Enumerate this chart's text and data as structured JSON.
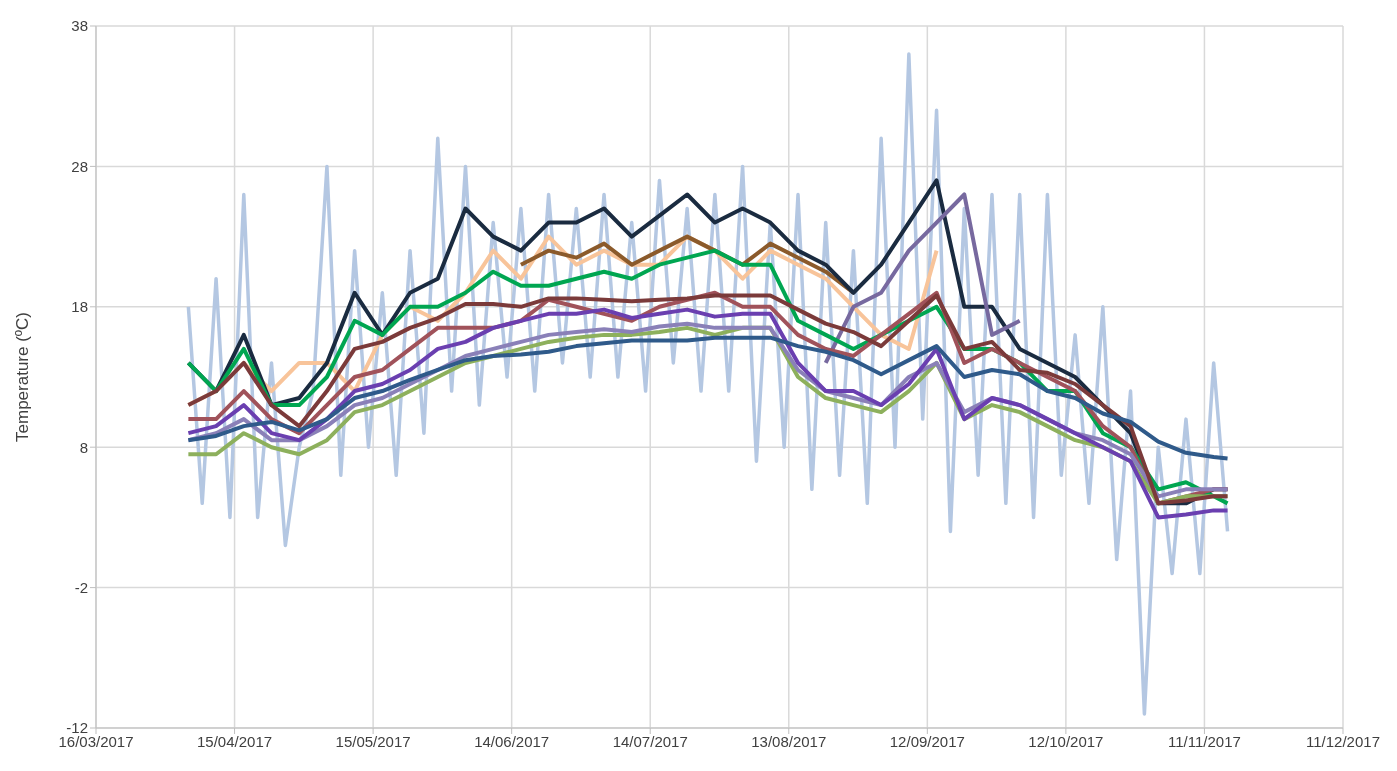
{
  "chart_data": {
    "type": "line",
    "ylabel": "Temperature (ºC)",
    "xlim": [
      "2017-03-16",
      "2017-12-11"
    ],
    "xticks": [
      {
        "value": "2017-03-16",
        "label": "16/03/2017"
      },
      {
        "value": "2017-04-15",
        "label": "15/04/2017"
      },
      {
        "value": "2017-05-15",
        "label": "15/05/2017"
      },
      {
        "value": "2017-06-14",
        "label": "14/06/2017"
      },
      {
        "value": "2017-07-14",
        "label": "14/07/2017"
      },
      {
        "value": "2017-08-13",
        "label": "13/08/2017"
      },
      {
        "value": "2017-09-12",
        "label": "12/09/2017"
      },
      {
        "value": "2017-10-12",
        "label": "12/10/2017"
      },
      {
        "value": "2017-11-11",
        "label": "11/11/2017"
      },
      {
        "value": "2017-12-11",
        "label": "11/12/2017"
      }
    ],
    "ylim": [
      -12,
      38
    ],
    "yticks": [
      -12,
      -2,
      8,
      18,
      28,
      38
    ],
    "grid": true,
    "x": [
      "2017-04-05",
      "2017-04-11",
      "2017-04-17",
      "2017-04-23",
      "2017-04-29",
      "2017-05-05",
      "2017-05-11",
      "2017-05-17",
      "2017-05-23",
      "2017-05-29",
      "2017-06-04",
      "2017-06-10",
      "2017-06-16",
      "2017-06-22",
      "2017-06-28",
      "2017-07-04",
      "2017-07-10",
      "2017-07-16",
      "2017-07-22",
      "2017-07-28",
      "2017-08-03",
      "2017-08-09",
      "2017-08-15",
      "2017-08-21",
      "2017-08-27",
      "2017-09-02",
      "2017-09-08",
      "2017-09-14",
      "2017-09-20",
      "2017-09-26",
      "2017-10-02",
      "2017-10-08",
      "2017-10-14",
      "2017-10-20",
      "2017-10-26",
      "2017-11-01",
      "2017-11-07",
      "2017-11-13",
      "2017-11-16"
    ],
    "series": [
      {
        "color": "#b4c7e2",
        "x": [
          "2017-04-05",
          "2017-04-08",
          "2017-04-11",
          "2017-04-14",
          "2017-04-17",
          "2017-04-20",
          "2017-04-23",
          "2017-04-26",
          "2017-04-29",
          "2017-05-02",
          "2017-05-05",
          "2017-05-08",
          "2017-05-11",
          "2017-05-14",
          "2017-05-17",
          "2017-05-20",
          "2017-05-23",
          "2017-05-26",
          "2017-05-29",
          "2017-06-01",
          "2017-06-04",
          "2017-06-07",
          "2017-06-10",
          "2017-06-13",
          "2017-06-16",
          "2017-06-19",
          "2017-06-22",
          "2017-06-25",
          "2017-06-28",
          "2017-07-01",
          "2017-07-04",
          "2017-07-07",
          "2017-07-10",
          "2017-07-13",
          "2017-07-16",
          "2017-07-19",
          "2017-07-22",
          "2017-07-25",
          "2017-07-28",
          "2017-07-31",
          "2017-08-03",
          "2017-08-06",
          "2017-08-09",
          "2017-08-12",
          "2017-08-15",
          "2017-08-18",
          "2017-08-21",
          "2017-08-24",
          "2017-08-27",
          "2017-08-30",
          "2017-09-02",
          "2017-09-05",
          "2017-09-08",
          "2017-09-11",
          "2017-09-14",
          "2017-09-17",
          "2017-09-20",
          "2017-09-23",
          "2017-09-26",
          "2017-09-29",
          "2017-10-02",
          "2017-10-05",
          "2017-10-08",
          "2017-10-11",
          "2017-10-14",
          "2017-10-17",
          "2017-10-20",
          "2017-10-23",
          "2017-10-26",
          "2017-10-29",
          "2017-11-01",
          "2017-11-04",
          "2017-11-07",
          "2017-11-10",
          "2017-11-13",
          "2017-11-16"
        ],
        "values": [
          18,
          4,
          20,
          3,
          26,
          3,
          14,
          1,
          8,
          12,
          28,
          6,
          22,
          8,
          19,
          6,
          22,
          9,
          30,
          12,
          28,
          11,
          24,
          13,
          25,
          12,
          26,
          14,
          25,
          13,
          26,
          13,
          24,
          12,
          27,
          14,
          25,
          12,
          26,
          12,
          28,
          7,
          24,
          8,
          26,
          5,
          24,
          6,
          22,
          4,
          30,
          8,
          36,
          10,
          32,
          2,
          25,
          6,
          26,
          4,
          26,
          3,
          26,
          6,
          16,
          4,
          18,
          0,
          12,
          -11,
          8,
          -1,
          10,
          -1,
          14,
          2
        ]
      },
      {
        "color": "#f8c49a",
        "values": [
          11,
          12,
          14,
          12,
          14,
          14,
          12,
          16,
          18,
          17,
          19,
          22,
          20,
          23,
          21,
          22,
          21,
          21,
          23,
          22,
          20,
          22,
          21,
          20,
          18,
          16,
          15,
          22,
          null,
          null,
          null,
          null,
          null,
          null,
          null,
          null,
          null,
          null,
          null
        ]
      },
      {
        "color": "#8b5a2b",
        "values": [
          null,
          null,
          null,
          null,
          null,
          null,
          null,
          null,
          null,
          null,
          null,
          null,
          21,
          22,
          21.5,
          22.5,
          21,
          22,
          23,
          22,
          21,
          22.5,
          21.5,
          20.5,
          19,
          null,
          null,
          null,
          null,
          null,
          null,
          null,
          null,
          null,
          null,
          null,
          null,
          null,
          null
        ]
      },
      {
        "color": "#1a2b40",
        "values": [
          14,
          12,
          16,
          11,
          11.5,
          14,
          19,
          16,
          19,
          20,
          25,
          23,
          22,
          24,
          24,
          25,
          23,
          24.5,
          26,
          24,
          25,
          24,
          22,
          21,
          19,
          21,
          24,
          27,
          18,
          18,
          15,
          14,
          13,
          11,
          9,
          4,
          4,
          5,
          5
        ]
      },
      {
        "color": "#77699f",
        "values": [
          null,
          null,
          null,
          null,
          null,
          null,
          null,
          null,
          null,
          null,
          null,
          null,
          null,
          null,
          null,
          null,
          null,
          null,
          null,
          null,
          null,
          null,
          null,
          14,
          18,
          19,
          22,
          24,
          26,
          16,
          17,
          null,
          null,
          null,
          null,
          null,
          null,
          null,
          null
        ]
      },
      {
        "color": "#00a651",
        "values": [
          14,
          12,
          15,
          11,
          11,
          13,
          17,
          16,
          18,
          18,
          19,
          20.5,
          19.5,
          19.5,
          20,
          20.5,
          20,
          21,
          21.5,
          22,
          21,
          21,
          17,
          16,
          15,
          16,
          17,
          18,
          15,
          15,
          14,
          12,
          12,
          9,
          8,
          5,
          5.5,
          4.5,
          4
        ]
      },
      {
        "color": "#a0525a",
        "values": [
          10,
          10,
          12,
          10,
          9,
          11,
          13,
          13.5,
          15,
          16.5,
          16.5,
          16.5,
          17,
          18.5,
          18,
          17.5,
          17,
          18,
          18.5,
          19,
          18,
          18,
          16,
          15,
          14.5,
          16,
          17.5,
          19,
          14,
          15,
          14,
          13,
          12,
          9.5,
          8,
          4,
          4.5,
          5,
          5
        ]
      },
      {
        "color": "#8db05c",
        "values": [
          7.5,
          7.5,
          9,
          8,
          7.5,
          8.5,
          10.5,
          11,
          12,
          13,
          14,
          14.5,
          15,
          15.5,
          15.8,
          16,
          16,
          16.2,
          16.5,
          16,
          16.5,
          16.5,
          13,
          11.5,
          11,
          10.5,
          12,
          14,
          10,
          11,
          10.5,
          9.5,
          8.5,
          8,
          7,
          4,
          4.5,
          4.5,
          4.5
        ]
      },
      {
        "color": "#8a80b8",
        "values": [
          8.5,
          9,
          10,
          8.5,
          8.5,
          9.5,
          11,
          11.5,
          12.5,
          13.5,
          14.5,
          15,
          15.5,
          16,
          16.2,
          16.4,
          16.2,
          16.6,
          16.8,
          16.5,
          16.5,
          16.5,
          13.5,
          12,
          11.5,
          11,
          13,
          14,
          10.5,
          11.5,
          11,
          10,
          9,
          8.5,
          7.5,
          4.5,
          5,
          5,
          5
        ]
      },
      {
        "color": "#6a3fb0",
        "values": [
          9,
          9.5,
          11,
          9,
          8.5,
          10,
          12,
          12.5,
          13.5,
          15,
          15.5,
          16.5,
          17,
          17.5,
          17.5,
          17.8,
          17.2,
          17.5,
          17.8,
          17.3,
          17.5,
          17.5,
          14,
          12,
          12,
          11,
          12.5,
          15,
          10,
          11.5,
          11,
          10,
          9,
          8,
          7,
          3,
          3.2,
          3.5,
          3.5
        ]
      },
      {
        "color": "#7b3a3a",
        "values": [
          11,
          12,
          14,
          11,
          9.5,
          12,
          15,
          15.5,
          16.5,
          17.2,
          18.2,
          18.2,
          18,
          18.6,
          18.6,
          18.5,
          18.4,
          18.5,
          18.6,
          18.8,
          18.8,
          18.8,
          17.8,
          16.8,
          16.2,
          15.2,
          17,
          18.8,
          15,
          15.5,
          13.5,
          13.3,
          12.5,
          11,
          9.5,
          4,
          4.2,
          4.5,
          4.5
        ]
      },
      {
        "color": "#2f5a8a",
        "values": [
          8.5,
          8.8,
          9.5,
          9.8,
          9.2,
          10,
          11.5,
          12,
          12.8,
          13.5,
          14.2,
          14.5,
          14.6,
          14.8,
          15.2,
          15.4,
          15.6,
          15.6,
          15.6,
          15.8,
          15.8,
          15.8,
          15.2,
          14.8,
          14.2,
          13.2,
          14.2,
          15.2,
          13,
          13.5,
          13.2,
          12,
          11.5,
          10.4,
          9.8,
          8.4,
          7.6,
          7.3,
          7.2
        ]
      }
    ]
  }
}
